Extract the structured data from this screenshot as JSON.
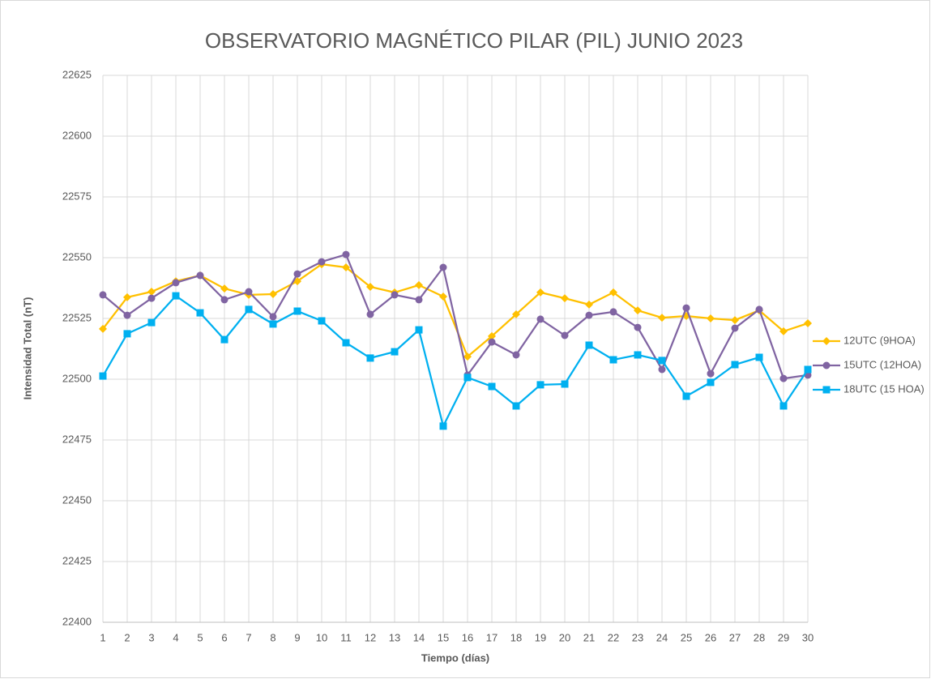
{
  "chart_data": {
    "type": "line",
    "title": "OBSERVATORIO MAGNÉTICO PILAR (PIL) JUNIO 2023",
    "x_label": "Tiempo (días)",
    "y_label": "Intensidad Total (nT)",
    "x": [
      1,
      2,
      3,
      4,
      5,
      6,
      7,
      8,
      9,
      10,
      11,
      12,
      13,
      14,
      15,
      16,
      17,
      18,
      19,
      20,
      21,
      22,
      23,
      24,
      25,
      26,
      27,
      28,
      29,
      30
    ],
    "xlim": [
      1,
      30
    ],
    "xticks": [
      1,
      2,
      3,
      4,
      5,
      6,
      7,
      8,
      9,
      10,
      11,
      12,
      13,
      14,
      15,
      16,
      17,
      18,
      19,
      20,
      21,
      22,
      23,
      24,
      25,
      26,
      27,
      28,
      29,
      30
    ],
    "ylim": [
      22400,
      22625
    ],
    "yticks": [
      22400,
      22425,
      22450,
      22475,
      22500,
      22525,
      22550,
      22575,
      22600,
      22625
    ],
    "grid": true,
    "legend": "right",
    "series": [
      {
        "name": "12UTC (9HOA)",
        "color": "#FFC000",
        "marker": "diamond",
        "values": [
          22520.7,
          22533.7,
          22536,
          22540.3,
          22542.7,
          22537.3,
          22534.7,
          22535,
          22540.3,
          22547.3,
          22546,
          22538,
          22535.7,
          22538.7,
          22534,
          22509.3,
          22517.7,
          22526.7,
          22535.7,
          22533.3,
          22530.7,
          22535.7,
          22528.3,
          22525.3,
          22526,
          22525,
          22524.3,
          22528.3,
          22519.7,
          22523
        ]
      },
      {
        "name": "15UTC (12HOA)",
        "color": "#8064A2",
        "marker": "circle",
        "values": [
          22534.7,
          22526.3,
          22533.3,
          22539.7,
          22542.7,
          22532.7,
          22536,
          22525.7,
          22543.3,
          22548.3,
          22551.3,
          22526.7,
          22534.7,
          22532.7,
          22546,
          22501.7,
          22515.3,
          22510,
          22524.7,
          22518,
          22526.3,
          22527.7,
          22521.3,
          22504,
          22529.3,
          22502.3,
          22521,
          22528.7,
          22500.3,
          22501.7
        ]
      },
      {
        "name": "18UTC (15 HOA)",
        "color": "#00B0F0",
        "marker": "square",
        "values": [
          22501.3,
          22518.7,
          22523.3,
          22534.3,
          22527.3,
          22516.3,
          22528.7,
          22522.7,
          22528,
          22524,
          22515,
          22508.7,
          22511.3,
          22520.3,
          22480.7,
          22500.7,
          22497,
          22489,
          22497.7,
          22498,
          22514,
          22508,
          22510,
          22507.7,
          22493,
          22498.7,
          22506,
          22509,
          22489,
          22504
        ]
      }
    ]
  }
}
